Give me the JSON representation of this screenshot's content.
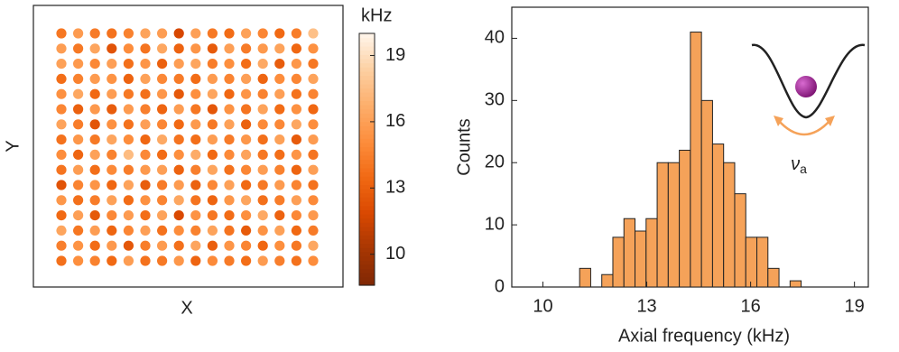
{
  "chart_data": [
    {
      "type": "heatmap",
      "xlabel": "X",
      "ylabel": "Y",
      "colorbar_label": "kHz",
      "clim": [
        8.6,
        20
      ],
      "cticks": [
        10,
        13,
        16,
        19
      ],
      "colormap": [
        "#7f2704",
        "#a63603",
        "#d94801",
        "#f16913",
        "#fd8d3c",
        "#fdae6b",
        "#fdd0a2",
        "#fff5eb"
      ],
      "values": [
        [
          14.1,
          15.8,
          14.3,
          13.9,
          14.6,
          16.2,
          15.9,
          11.8,
          16.0,
          14.2,
          13.6,
          16.1,
          14.8,
          13.5,
          14.4,
          17.6
        ],
        [
          15.9,
          14.2,
          16.3,
          12.4,
          15.1,
          14.0,
          16.4,
          13.2,
          15.5,
          12.8,
          16.0,
          14.3,
          15.7,
          16.2,
          13.4,
          15.3
        ],
        [
          16.1,
          15.7,
          14.9,
          16.0,
          13.8,
          15.5,
          13.1,
          15.9,
          16.3,
          14.4,
          15.2,
          13.7,
          16.5,
          12.9,
          15.6,
          14.1
        ],
        [
          13.7,
          14.6,
          15.8,
          15.4,
          13.2,
          16.1,
          14.9,
          14.3,
          13.6,
          15.8,
          14.7,
          16.0,
          13.3,
          15.1,
          14.8,
          16.2
        ],
        [
          15.3,
          16.4,
          13.5,
          15.9,
          14.2,
          13.8,
          15.6,
          12.7,
          15.2,
          16.3,
          13.4,
          15.5,
          14.6,
          16.0,
          13.9,
          14.7
        ],
        [
          14.8,
          13.1,
          15.7,
          12.9,
          15.8,
          14.5,
          13.3,
          15.9,
          14.1,
          12.6,
          15.4,
          14.0,
          16.2,
          13.6,
          15.3,
          13.4
        ],
        [
          16.2,
          14.4,
          12.5,
          15.3,
          13.9,
          16.0,
          14.8,
          13.5,
          15.7,
          14.2,
          16.1,
          13.1,
          15.0,
          14.9,
          16.4,
          15.1
        ],
        [
          13.9,
          15.6,
          14.2,
          16.3,
          15.1,
          13.4,
          16.5,
          14.0,
          13.7,
          15.9,
          14.3,
          15.6,
          13.8,
          16.1,
          12.8,
          15.8
        ],
        [
          15.1,
          13.3,
          16.1,
          14.6,
          17.4,
          14.9,
          13.6,
          15.2,
          16.6,
          13.5,
          15.0,
          16.2,
          14.1,
          13.7,
          15.5,
          14.0
        ],
        [
          14.0,
          15.9,
          13.7,
          15.0,
          14.4,
          15.7,
          16.0,
          13.2,
          14.5,
          16.3,
          13.9,
          14.8,
          15.9,
          14.6,
          13.3,
          16.0
        ],
        [
          12.4,
          14.7,
          15.5,
          13.4,
          16.2,
          12.9,
          14.3,
          15.8,
          13.1,
          14.9,
          16.1,
          13.5,
          14.2,
          15.8,
          14.7,
          13.9
        ],
        [
          15.6,
          13.8,
          14.4,
          16.1,
          13.6,
          15.3,
          14.7,
          16.4,
          14.0,
          13.3,
          15.6,
          16.3,
          13.8,
          14.4,
          16.0,
          15.0
        ],
        [
          13.5,
          16.0,
          12.7,
          14.9,
          15.8,
          13.7,
          16.2,
          11.9,
          15.4,
          14.1,
          13.6,
          15.2,
          16.5,
          13.2,
          14.9,
          15.7
        ],
        [
          16.3,
          14.1,
          15.9,
          13.3,
          14.8,
          16.0,
          13.9,
          15.1,
          14.6,
          16.2,
          14.0,
          12.8,
          15.4,
          16.1,
          13.5,
          14.3
        ],
        [
          14.5,
          15.4,
          13.6,
          15.7,
          12.6,
          14.4,
          15.8,
          13.8,
          16.3,
          13.0,
          15.5,
          14.7,
          13.4,
          15.2,
          14.1,
          16.4
        ],
        [
          13.8,
          15.2,
          14.6,
          13.5,
          15.9,
          13.9,
          14.2,
          15.6,
          13.3,
          15.0,
          14.3,
          13.7,
          15.8,
          14.5,
          13.9,
          15.1
        ]
      ]
    },
    {
      "type": "histogram",
      "xlabel": "Axial frequency (kHz)",
      "ylabel": "Counts",
      "bins": [
        11.06,
        11.38,
        11.7,
        12.02,
        12.34,
        12.66,
        12.98,
        13.3,
        13.62,
        13.94,
        14.26,
        14.58,
        14.9,
        15.22,
        15.54,
        15.86,
        16.18,
        16.5,
        16.82,
        17.14,
        17.46,
        17.78
      ],
      "values": [
        3,
        0,
        2,
        8,
        11,
        9,
        11,
        20,
        20,
        22,
        41,
        30,
        23,
        20,
        15,
        8,
        8,
        3,
        0,
        1,
        0
      ],
      "color": "#f5a259",
      "edgecolor": "#222222",
      "xlim": [
        9.1,
        19.4
      ],
      "xticks": [
        10,
        13,
        16,
        19
      ],
      "ylim": [
        0,
        45
      ],
      "yticks": [
        0,
        10,
        20,
        30,
        40
      ],
      "annotation": "ν",
      "annotation_subscript": "a"
    }
  ]
}
